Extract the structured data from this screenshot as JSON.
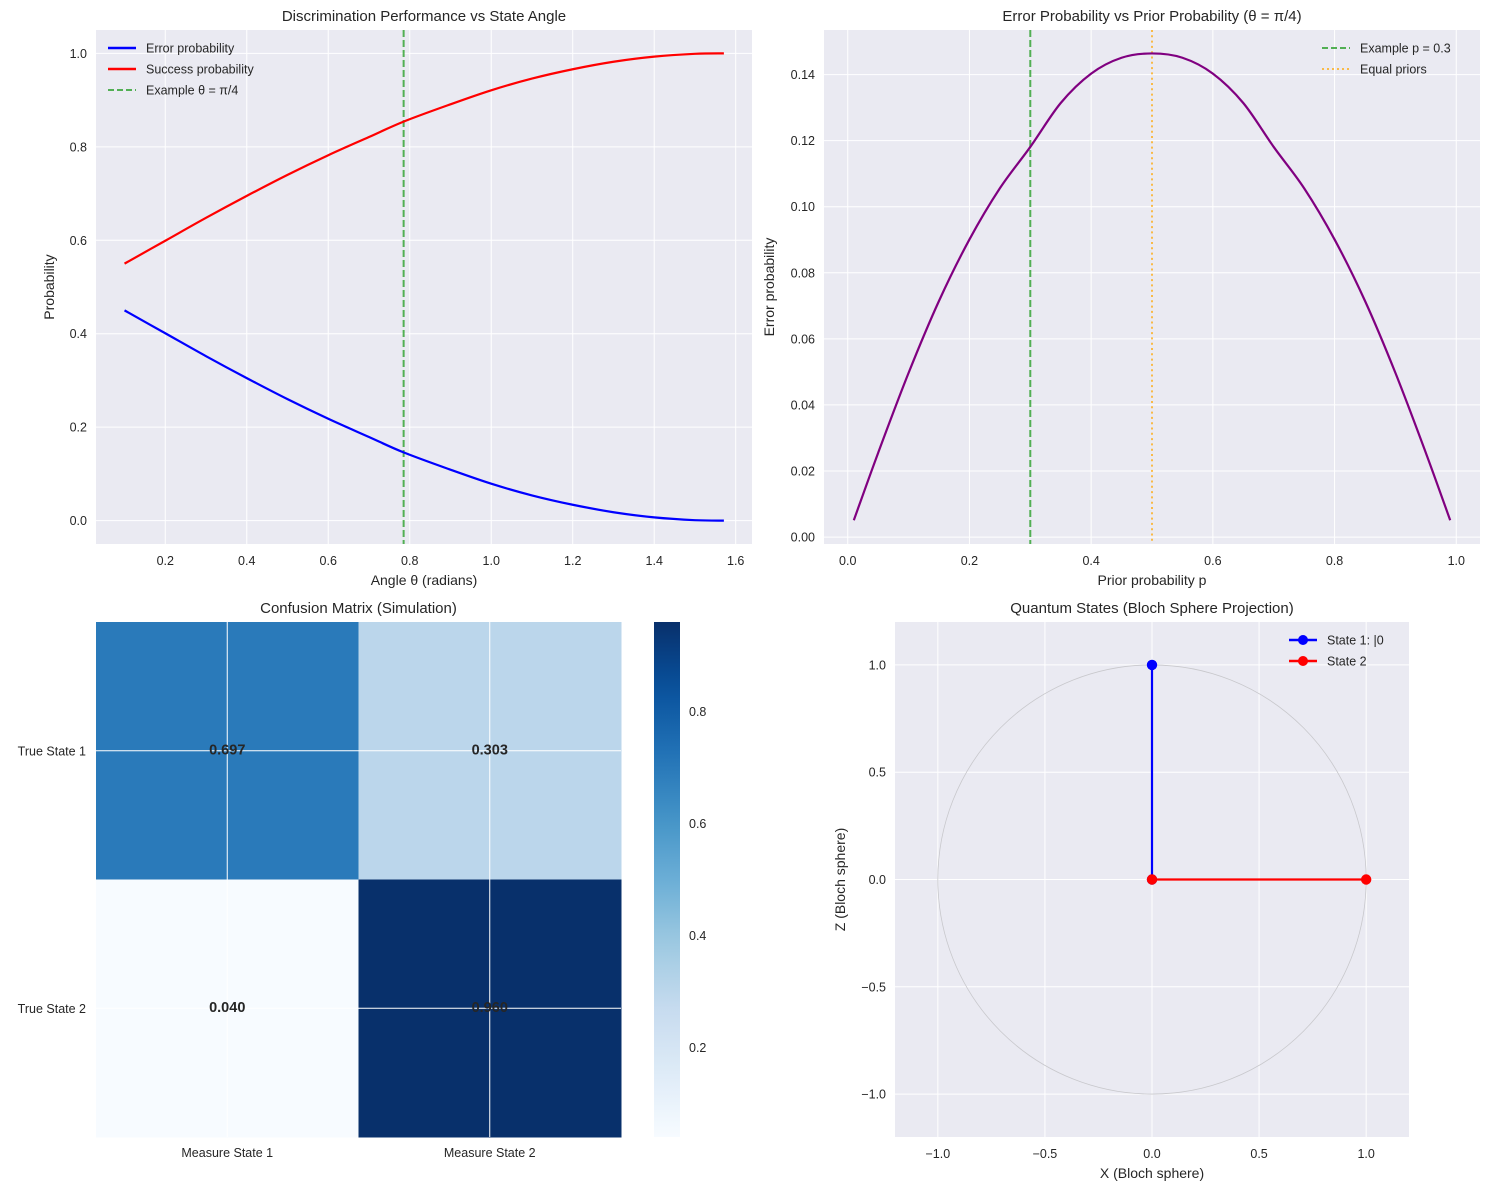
{
  "chart_data": [
    {
      "type": "line",
      "title": "Discrimination Performance vs State Angle",
      "xlabel": "Angle θ (radians)",
      "ylabel": "Probability",
      "xlim": [
        0.03,
        1.64
      ],
      "ylim": [
        -0.05,
        1.05
      ],
      "xticks": [
        0.2,
        0.4,
        0.6,
        0.8,
        1.0,
        1.2,
        1.4,
        1.6
      ],
      "xtick_labels": [
        "0.2",
        "0.4",
        "0.6",
        "0.8",
        "1.0",
        "1.2",
        "1.4",
        "1.6"
      ],
      "yticks": [
        0.0,
        0.2,
        0.4,
        0.6,
        0.8,
        1.0
      ],
      "ytick_labels": [
        "0.0",
        "0.2",
        "0.4",
        "0.6",
        "0.8",
        "1.0"
      ],
      "grid": true,
      "legend_position": "top-left",
      "series": [
        {
          "name": "Error probability",
          "color": "#0000ff",
          "x": [
            0.1,
            0.2,
            0.3,
            0.4,
            0.5,
            0.6,
            0.7,
            0.785,
            0.9,
            1.0,
            1.1,
            1.2,
            1.3,
            1.4,
            1.5,
            1.571
          ],
          "y": [
            0.45,
            0.401,
            0.352,
            0.305,
            0.26,
            0.218,
            0.179,
            0.146,
            0.109,
            0.079,
            0.054,
            0.034,
            0.018,
            0.007,
            0.001,
            0.0
          ]
        },
        {
          "name": "Success probability",
          "color": "#ff0000",
          "x": [
            0.1,
            0.2,
            0.3,
            0.4,
            0.5,
            0.6,
            0.7,
            0.785,
            0.9,
            1.0,
            1.1,
            1.2,
            1.3,
            1.4,
            1.5,
            1.571
          ],
          "y": [
            0.55,
            0.599,
            0.648,
            0.695,
            0.74,
            0.782,
            0.821,
            0.854,
            0.891,
            0.921,
            0.946,
            0.966,
            0.982,
            0.993,
            0.999,
            1.0
          ]
        }
      ],
      "vlines": [
        {
          "name": "Example θ = π/4",
          "x": 0.785,
          "color": "#2ca02c",
          "style": "dashed"
        }
      ]
    },
    {
      "type": "line",
      "title": "Error Probability vs Prior Probability (θ = π/4)",
      "xlabel": "Prior probability p",
      "ylabel": "Error probability",
      "xlim": [
        -0.039,
        1.039
      ],
      "ylim": [
        -0.0021,
        0.1535
      ],
      "xticks": [
        0.0,
        0.2,
        0.4,
        0.6,
        0.8,
        1.0
      ],
      "xtick_labels": [
        "0.0",
        "0.2",
        "0.4",
        "0.6",
        "0.8",
        "1.0"
      ],
      "yticks": [
        0.0,
        0.02,
        0.04,
        0.06,
        0.08,
        0.1,
        0.12,
        0.14
      ],
      "ytick_labels": [
        "0.00",
        "0.02",
        "0.04",
        "0.06",
        "0.08",
        "0.10",
        "0.12",
        "0.14"
      ],
      "grid": true,
      "legend_position": "top-right",
      "series": [
        {
          "color": "#800080",
          "x": [
            0.01,
            0.05,
            0.1,
            0.15,
            0.2,
            0.25,
            0.3,
            0.35,
            0.4,
            0.45,
            0.5,
            0.55,
            0.6,
            0.65,
            0.7,
            0.75,
            0.8,
            0.85,
            0.9,
            0.95,
            0.99
          ],
          "y": [
            0.0051,
            0.0255,
            0.0497,
            0.0715,
            0.0901,
            0.1056,
            0.1181,
            0.1314,
            0.1403,
            0.1451,
            0.1464,
            0.1451,
            0.1403,
            0.1314,
            0.1181,
            0.1056,
            0.0901,
            0.0715,
            0.0497,
            0.0255,
            0.0051
          ]
        }
      ],
      "vlines": [
        {
          "name": "Example p = 0.3",
          "x": 0.3,
          "color": "#2ca02c",
          "style": "dashed"
        },
        {
          "name": "Equal priors",
          "x": 0.5,
          "color": "#ffa500",
          "style": "dotted"
        }
      ]
    },
    {
      "type": "heatmap",
      "title": "Confusion Matrix (Simulation)",
      "row_labels": [
        "True State 1",
        "True State 2"
      ],
      "col_labels": [
        "Measure State 1",
        "Measure State 2"
      ],
      "values": [
        [
          0.697,
          0.303
        ],
        [
          0.04,
          0.96
        ]
      ],
      "value_labels": [
        [
          "0.697",
          "0.303"
        ],
        [
          "0.040",
          "0.960"
        ]
      ],
      "colormap": "Blues",
      "colorbar_range": [
        0.04,
        0.96
      ],
      "colorbar_ticks": [
        0.2,
        0.4,
        0.6,
        0.8
      ],
      "colorbar_tick_labels": [
        "0.2",
        "0.4",
        "0.6",
        "0.8"
      ]
    },
    {
      "type": "line",
      "title": "Quantum States (Bloch Sphere Projection)",
      "xlabel": "X (Bloch sphere)",
      "ylabel": "Z (Bloch sphere)",
      "xlim": [
        -1.2,
        1.2
      ],
      "ylim": [
        -1.2,
        1.2
      ],
      "xticks": [
        -1.0,
        -0.5,
        0.0,
        0.5,
        1.0
      ],
      "xtick_labels": [
        "−1.0",
        "−0.5",
        "0.0",
        "0.5",
        "1.0"
      ],
      "yticks": [
        -1.0,
        -0.5,
        0.0,
        0.5,
        1.0
      ],
      "ytick_labels": [
        "−1.0",
        "−0.5",
        "0.0",
        "0.5",
        "1.0"
      ],
      "grid": true,
      "legend_position": "top-right",
      "unit_circle": true,
      "series": [
        {
          "name": "State 1: |0",
          "color": "#0000ff",
          "x": [
            0,
            0
          ],
          "y": [
            0,
            1
          ]
        },
        {
          "name": "State 2",
          "color": "#ff0000",
          "x": [
            0,
            1
          ],
          "y": [
            0,
            0
          ]
        }
      ]
    }
  ]
}
